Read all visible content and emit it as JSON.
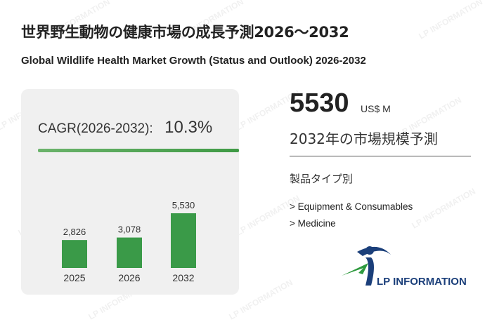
{
  "title": "世界野生動物の健康市場の成長予測2026～2032",
  "subtitle": "Global Wildlife Health Market Growth (Status and Outlook) 2026-2032",
  "cagr": {
    "label": "CAGR(2026-2032):",
    "value": "10.3%"
  },
  "headline": {
    "value": "5530",
    "unit": "US$ M",
    "caption": "2032年の市場規模予測"
  },
  "segments": {
    "title": "製品タイプ別",
    "items": [
      "> Equipment & Consumables",
      "> Medicine"
    ]
  },
  "logo": {
    "text": "LP INFORMATION",
    "watermark": "LP INFORMATION"
  },
  "colors": {
    "bar": "#3a9a48",
    "accent_line": "#4ca552",
    "logo_blue": "#1b3f7a",
    "logo_green": "#2e9a3e"
  },
  "chart_data": {
    "type": "bar",
    "categories": [
      "2025",
      "2026",
      "2032"
    ],
    "values": [
      2826,
      3078,
      5530
    ],
    "data_labels": [
      "2,826",
      "3,078",
      "5,530"
    ],
    "ylim": [
      0,
      5530
    ],
    "grid": false
  }
}
